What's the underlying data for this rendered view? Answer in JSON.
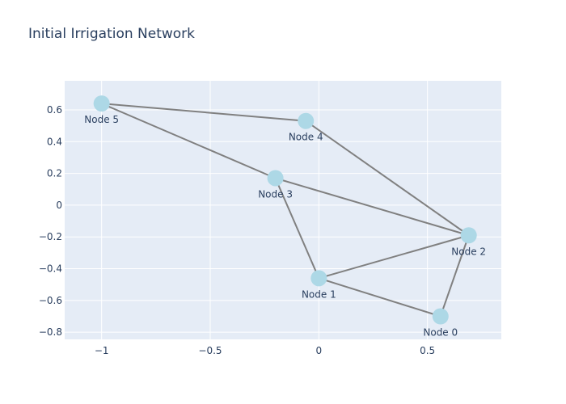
{
  "chart_data": {
    "type": "scatter",
    "title": "Initial Irrigation Network",
    "xlabel": "",
    "ylabel": "",
    "xlim": [
      -1.17,
      0.84
    ],
    "ylim": [
      -0.845,
      0.783
    ],
    "x_ticks": [
      -1,
      -0.5,
      0,
      0.5
    ],
    "x_tick_labels": [
      "−1",
      "−0.5",
      "0",
      "0.5"
    ],
    "y_ticks": [
      -0.8,
      -0.6,
      -0.4,
      -0.2,
      0,
      0.2,
      0.4,
      0.6
    ],
    "y_tick_labels": [
      "−0.8",
      "−0.6",
      "−0.4",
      "−0.2",
      "0",
      "0.2",
      "0.4",
      "0.6"
    ],
    "grid": true,
    "nodes": [
      {
        "label": "Node 0",
        "x": 0.56,
        "y": -0.7
      },
      {
        "label": "Node 1",
        "x": 0.0,
        "y": -0.46
      },
      {
        "label": "Node 2",
        "x": 0.69,
        "y": -0.19
      },
      {
        "label": "Node 3",
        "x": -0.2,
        "y": 0.17
      },
      {
        "label": "Node 4",
        "x": -0.06,
        "y": 0.53
      },
      {
        "label": "Node 5",
        "x": -1.0,
        "y": 0.64
      }
    ],
    "edges": [
      [
        5,
        4
      ],
      [
        5,
        3
      ],
      [
        4,
        2
      ],
      [
        3,
        2
      ],
      [
        3,
        1
      ],
      [
        1,
        2
      ],
      [
        1,
        0
      ],
      [
        0,
        2
      ]
    ],
    "colors": {
      "plot_bg": "#e5ecf6",
      "grid": "#ffffff",
      "edge": "#808080",
      "node": "#add8e6",
      "text": "#2a3f5f"
    }
  }
}
